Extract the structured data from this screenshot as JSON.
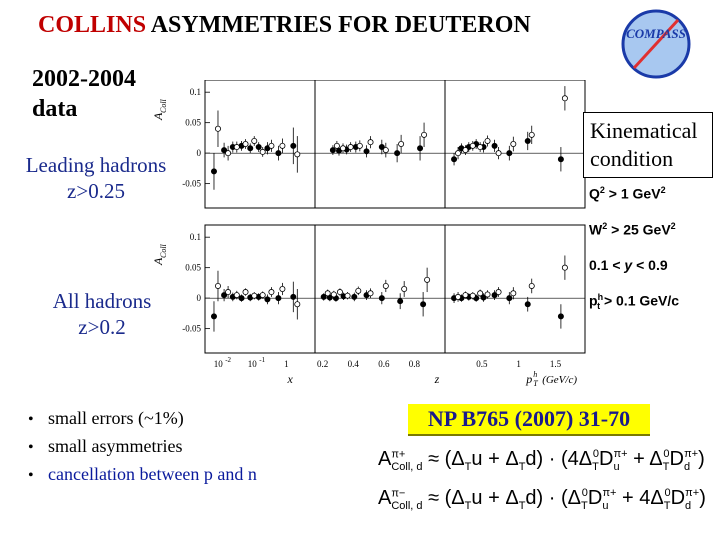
{
  "title": {
    "highlight": "COLLINS",
    "rest": " ASYMMETRIES  FOR DEUTERON"
  },
  "logo": {
    "text": "COMPASS",
    "ring_color": "#1a3aa8",
    "fill_color": "#a8c8f0",
    "needle_color": "#e03030"
  },
  "data_years": [
    "2002-2004",
    "data"
  ],
  "leading_hadrons": [
    "Leading hadrons",
    "z>0.25"
  ],
  "all_hadrons": [
    "All hadrons",
    "z>0.2"
  ],
  "kinematics": {
    "box_title": [
      "Kinematical",
      "condition"
    ],
    "conditions": [
      {
        "pre": "Q",
        "sup": "2",
        "post": " > 1 GeV",
        "sup2": "2"
      },
      {
        "pre": "W",
        "sup": "2",
        "post": " > 25 GeV",
        "sup2": "2"
      },
      {
        "pre": "0.1  < ",
        "it": "y",
        "post": "  < 0.9",
        "sup": "",
        "sup2": ""
      },
      {
        "pre": "p",
        "sup": "h",
        "sub": "t",
        "post": " > 0.1 GeV/c",
        "sup2": ""
      }
    ]
  },
  "plot": {
    "y_axis_label": "A",
    "y_axis_sub": "Coll",
    "y_ticks": [
      "0.1",
      "0.05",
      "0",
      "-0.05"
    ],
    "panel_labels": [
      "x",
      "z",
      "p"
    ],
    "x_ticks_1": [
      "10",
      "10",
      "1"
    ],
    "x_ticks_1_exp": [
      "-2",
      "-1",
      ""
    ],
    "x_ticks_2": [
      "0.2",
      "0.4",
      "0.6",
      "0.8"
    ],
    "x_ticks_3": [
      "0.5",
      "1",
      "1.5"
    ],
    "pt_label": "(GeV/c)",
    "pt_sup": "h",
    "pt_sub": "T"
  },
  "chart_data": [
    {
      "type": "scatter",
      "title": "",
      "xlabel": "x",
      "ylabel": "A_Coll",
      "ylim": [
        -0.09,
        0.12
      ],
      "panels": [
        {
          "row": 0,
          "name": "x",
          "series": [
            {
              "marker": "filled",
              "x": [
                0.005,
                0.008,
                0.012,
                0.018,
                0.027,
                0.04,
                0.06,
                0.1,
                0.2
              ],
              "y": [
                -0.03,
                0.005,
                0.01,
                0.012,
                0.008,
                0.01,
                0.008,
                0.0,
                0.012
              ],
              "err": [
                0.03,
                0.012,
                0.009,
                0.008,
                0.008,
                0.008,
                0.01,
                0.012,
                0.03
              ]
            },
            {
              "marker": "open",
              "x": [
                0.005,
                0.008,
                0.012,
                0.018,
                0.027,
                0.04,
                0.06,
                0.1,
                0.2
              ],
              "y": [
                0.04,
                0.0,
                0.01,
                0.015,
                0.02,
                0.002,
                0.012,
                0.012,
                -0.002
              ],
              "err": [
                0.03,
                0.012,
                0.009,
                0.008,
                0.008,
                0.008,
                0.01,
                0.012,
                0.03
              ]
            }
          ]
        },
        {
          "row": 0,
          "name": "z",
          "series": [
            {
              "marker": "filled",
              "x": [
                0.28,
                0.32,
                0.37,
                0.43,
                0.5,
                0.6,
                0.7,
                0.85
              ],
              "y": [
                0.005,
                0.004,
                0.006,
                0.01,
                0.003,
                0.01,
                0.0,
                0.008
              ],
              "err": [
                0.008,
                0.008,
                0.008,
                0.009,
                0.01,
                0.012,
                0.015,
                0.02
              ]
            },
            {
              "marker": "open",
              "x": [
                0.28,
                0.32,
                0.37,
                0.43,
                0.5,
                0.6,
                0.7,
                0.85
              ],
              "y": [
                0.012,
                0.008,
                0.01,
                0.012,
                0.018,
                0.005,
                0.015,
                0.03
              ],
              "err": [
                0.008,
                0.008,
                0.008,
                0.009,
                0.01,
                0.012,
                0.015,
                0.02
              ]
            }
          ]
        },
        {
          "row": 0,
          "name": "pt",
          "series": [
            {
              "marker": "filled",
              "x": [
                0.15,
                0.25,
                0.35,
                0.45,
                0.55,
                0.7,
                0.9,
                1.15,
                1.6
              ],
              "y": [
                -0.01,
                0.008,
                0.01,
                0.015,
                0.01,
                0.012,
                0.0,
                0.02,
                -0.01
              ],
              "err": [
                0.01,
                0.008,
                0.008,
                0.008,
                0.009,
                0.01,
                0.012,
                0.015,
                0.02
              ]
            },
            {
              "marker": "open",
              "x": [
                0.15,
                0.25,
                0.35,
                0.45,
                0.55,
                0.7,
                0.9,
                1.15,
                1.6
              ],
              "y": [
                0.0,
                0.005,
                0.012,
                0.01,
                0.02,
                0.0,
                0.015,
                0.03,
                0.09
              ],
              "err": [
                0.01,
                0.008,
                0.008,
                0.008,
                0.009,
                0.01,
                0.012,
                0.015,
                0.02
              ]
            }
          ]
        },
        {
          "row": 1,
          "name": "x",
          "series": [
            {
              "marker": "filled",
              "x": [
                0.005,
                0.008,
                0.012,
                0.018,
                0.027,
                0.04,
                0.06,
                0.1,
                0.2
              ],
              "y": [
                -0.03,
                0.005,
                0.002,
                0.0,
                0.001,
                0.002,
                -0.002,
                0.0,
                0.002
              ],
              "err": [
                0.025,
                0.01,
                0.007,
                0.006,
                0.006,
                0.006,
                0.008,
                0.01,
                0.025
              ]
            },
            {
              "marker": "open",
              "x": [
                0.005,
                0.008,
                0.012,
                0.018,
                0.027,
                0.04,
                0.06,
                0.1,
                0.2
              ],
              "y": [
                0.02,
                0.01,
                0.005,
                0.01,
                0.004,
                0.005,
                0.01,
                0.015,
                -0.01
              ],
              "err": [
                0.025,
                0.01,
                0.007,
                0.006,
                0.006,
                0.006,
                0.008,
                0.01,
                0.025
              ]
            }
          ]
        },
        {
          "row": 1,
          "name": "z",
          "series": [
            {
              "marker": "filled",
              "x": [
                0.22,
                0.26,
                0.3,
                0.35,
                0.42,
                0.5,
                0.6,
                0.72,
                0.87
              ],
              "y": [
                0.002,
                0.001,
                0.0,
                0.003,
                0.002,
                0.005,
                0.0,
                -0.005,
                -0.01
              ],
              "err": [
                0.006,
                0.006,
                0.006,
                0.006,
                0.007,
                0.008,
                0.01,
                0.013,
                0.02
              ]
            },
            {
              "marker": "open",
              "x": [
                0.22,
                0.26,
                0.3,
                0.35,
                0.42,
                0.5,
                0.6,
                0.72,
                0.87
              ],
              "y": [
                0.008,
                0.006,
                0.01,
                0.004,
                0.012,
                0.008,
                0.02,
                0.015,
                0.03
              ],
              "err": [
                0.006,
                0.006,
                0.006,
                0.006,
                0.007,
                0.008,
                0.01,
                0.013,
                0.02
              ]
            }
          ]
        },
        {
          "row": 1,
          "name": "pt",
          "series": [
            {
              "marker": "filled",
              "x": [
                0.15,
                0.25,
                0.35,
                0.45,
                0.55,
                0.7,
                0.9,
                1.15,
                1.6
              ],
              "y": [
                0.0,
                0.0,
                0.002,
                0.0,
                0.001,
                0.005,
                0.0,
                -0.01,
                -0.03
              ],
              "err": [
                0.008,
                0.006,
                0.006,
                0.006,
                0.007,
                0.008,
                0.01,
                0.012,
                0.02
              ]
            },
            {
              "marker": "open",
              "x": [
                0.15,
                0.25,
                0.35,
                0.45,
                0.55,
                0.7,
                0.9,
                1.15,
                1.6
              ],
              "y": [
                0.002,
                0.005,
                0.004,
                0.008,
                0.006,
                0.01,
                0.008,
                0.02,
                0.05
              ],
              "err": [
                0.008,
                0.006,
                0.006,
                0.006,
                0.007,
                0.008,
                0.01,
                0.012,
                0.02
              ]
            }
          ]
        }
      ]
    }
  ],
  "bullets": [
    {
      "text": "small errors (~1%)",
      "color": "#000000"
    },
    {
      "text": "small asymmetries",
      "color": "#000000"
    },
    {
      "text": "cancellation between p and n",
      "color": "#0a1a9c"
    }
  ],
  "reference": "NP B765 (2007) 31-70",
  "formulas": [
    {
      "lhs": "A",
      "lhs_sup": "π+",
      "lhs_sub": "Coll, d",
      "approx": " ≈ ",
      "body": "(Δ",
      "sub1": "T",
      "body2": "u + Δ",
      "sub2": "T",
      "body3": "d) · (4Δ",
      "sub3": "T",
      "sup3": "0",
      "body4": "D",
      "sub4": "u",
      "sup4": "π+",
      "body5": " + Δ",
      "sub5": "T",
      "sup5": "0",
      "body6": "D",
      "sub6": "d",
      "sup6": "π+",
      "tail": ")"
    },
    {
      "lhs": "A",
      "lhs_sup": "π−",
      "lhs_sub": "Coll, d",
      "approx": " ≈ ",
      "body": "(Δ",
      "sub1": "T",
      "body2": "u + Δ",
      "sub2": "T",
      "body3": "d) · (Δ",
      "sub3": "T",
      "sup3": "0",
      "body4": "D",
      "sub4": "u",
      "sup4": "π+",
      "body5": " + 4Δ",
      "sub5": "T",
      "sup5": "0",
      "body6": "D",
      "sub6": "d",
      "sup6": "π+",
      "tail": ")"
    }
  ]
}
